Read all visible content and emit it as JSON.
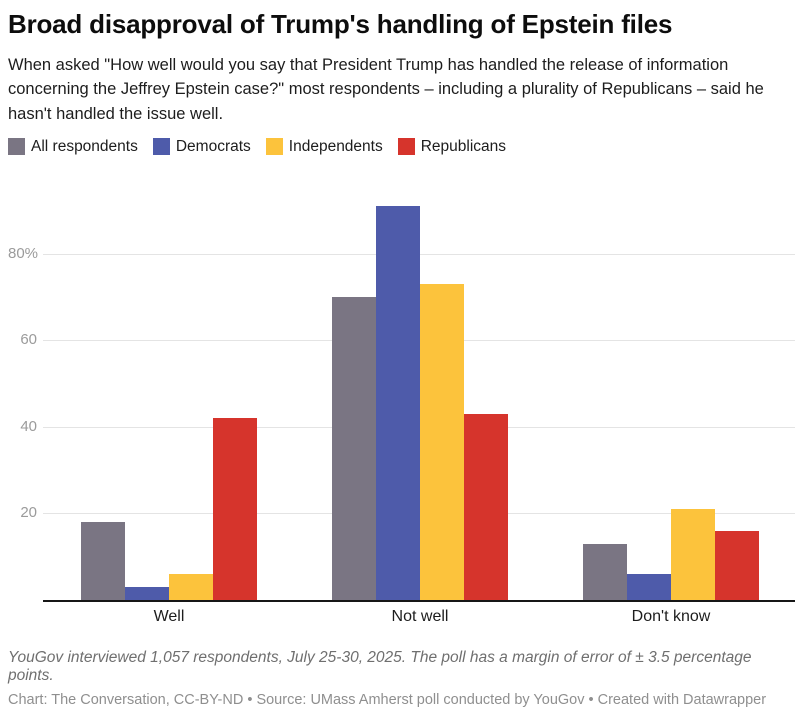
{
  "header": {
    "title": "Broad disapproval of Trump's handling of Epstein files",
    "subtitle": "When asked \"How well would you say that President Trump has handled the release of information concerning the Jeffrey Epstein case?\" most respondents – including a plurality of Republicans – said he hasn't handled the issue well."
  },
  "chart_data": {
    "type": "bar",
    "categories": [
      "Well",
      "Not well",
      "Don't know"
    ],
    "series": [
      {
        "name": "All respondents",
        "color": "#7a7583",
        "values": [
          18,
          70,
          13
        ]
      },
      {
        "name": "Democrats",
        "color": "#4e5baa",
        "values": [
          3,
          91,
          6
        ]
      },
      {
        "name": "Independents",
        "color": "#fcc33c",
        "values": [
          6,
          73,
          21
        ]
      },
      {
        "name": "Republicans",
        "color": "#d6342c",
        "values": [
          42,
          43,
          16
        ]
      }
    ],
    "title": "Broad disapproval of Trump's handling of Epstein files",
    "xlabel": "",
    "ylabel": "",
    "y_ticks": [
      20,
      40,
      60,
      80
    ],
    "y_tick_labels": [
      "20",
      "40",
      "60",
      "80%"
    ],
    "ylim": [
      0,
      95
    ],
    "grid": true,
    "legend_position": "top"
  },
  "footer": {
    "note": "YouGov interviewed 1,057 respondents, July 25-30, 2025. The poll has a margin of error of ± 3.5 percentage points.",
    "credit": "Chart: The Conversation, CC-BY-ND • Source: UMass Amherst poll conducted by YouGov • Created with Datawrapper"
  }
}
